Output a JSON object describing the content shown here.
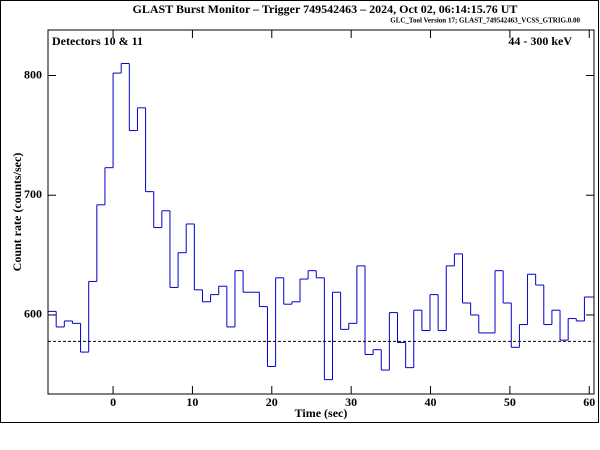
{
  "chart_data": {
    "type": "histogram",
    "title": "GLAST Burst Monitor  –  Trigger 749542463  –  2024, Oct 02, 06:14:15.76 UT",
    "subtitle": "GLC_Tool Version 17; GLAST_749542463_VCSS_GTRIG.0.00",
    "annotations": [
      "Detectors 10 & 11",
      "44 - 300 keV"
    ],
    "x_label": "Time (sec)",
    "y_label": "Count rate (counts/sec)",
    "color": "#0000cc",
    "bins": [
      -8.192,
      -7.168,
      -6.144,
      -5.12,
      -4.096,
      -3.072,
      -2.048,
      -1.024,
      0,
      1.024,
      2.048,
      3.072,
      4.096,
      5.12,
      6.144,
      7.168,
      8.192,
      9.216,
      10.24,
      11.264,
      12.288,
      13.312,
      14.336,
      15.36,
      16.384,
      17.408,
      18.432,
      19.456,
      20.48,
      21.504,
      22.528,
      23.552,
      24.576,
      25.6,
      26.624,
      27.648,
      28.672,
      29.696,
      30.72,
      31.744,
      32.768,
      33.792,
      34.816,
      35.84,
      36.864,
      37.888,
      38.912,
      39.936,
      40.96,
      41.984,
      43.008,
      44.032,
      45.056,
      46.08,
      47.104,
      48.128,
      49.152,
      50.176,
      51.2,
      52.224,
      53.248,
      54.272,
      55.296,
      56.32,
      57.344,
      58.368,
      59.392,
      60.416,
      61.44
    ],
    "values": [
      603,
      590,
      595,
      593,
      569,
      628,
      692,
      723,
      802,
      810,
      754,
      773,
      703,
      673,
      687,
      623,
      652,
      676,
      621,
      611,
      617,
      624,
      590,
      637,
      619,
      619,
      607,
      557,
      631,
      609,
      611,
      630,
      637,
      631,
      546,
      619,
      588,
      593,
      641,
      567,
      571,
      554,
      602,
      577,
      556,
      604,
      587,
      617,
      587,
      641,
      651,
      610,
      600,
      585,
      585,
      637,
      610,
      573,
      592,
      634,
      625,
      592,
      604,
      579,
      597,
      595,
      615,
      615
    ],
    "background_level": 578,
    "xlim": [
      -8.2,
      60.6
    ],
    "ylim": [
      534,
      838
    ],
    "xticks": [
      0,
      10,
      20,
      30,
      40,
      50,
      60
    ],
    "yticks": [
      600,
      700,
      800
    ]
  }
}
